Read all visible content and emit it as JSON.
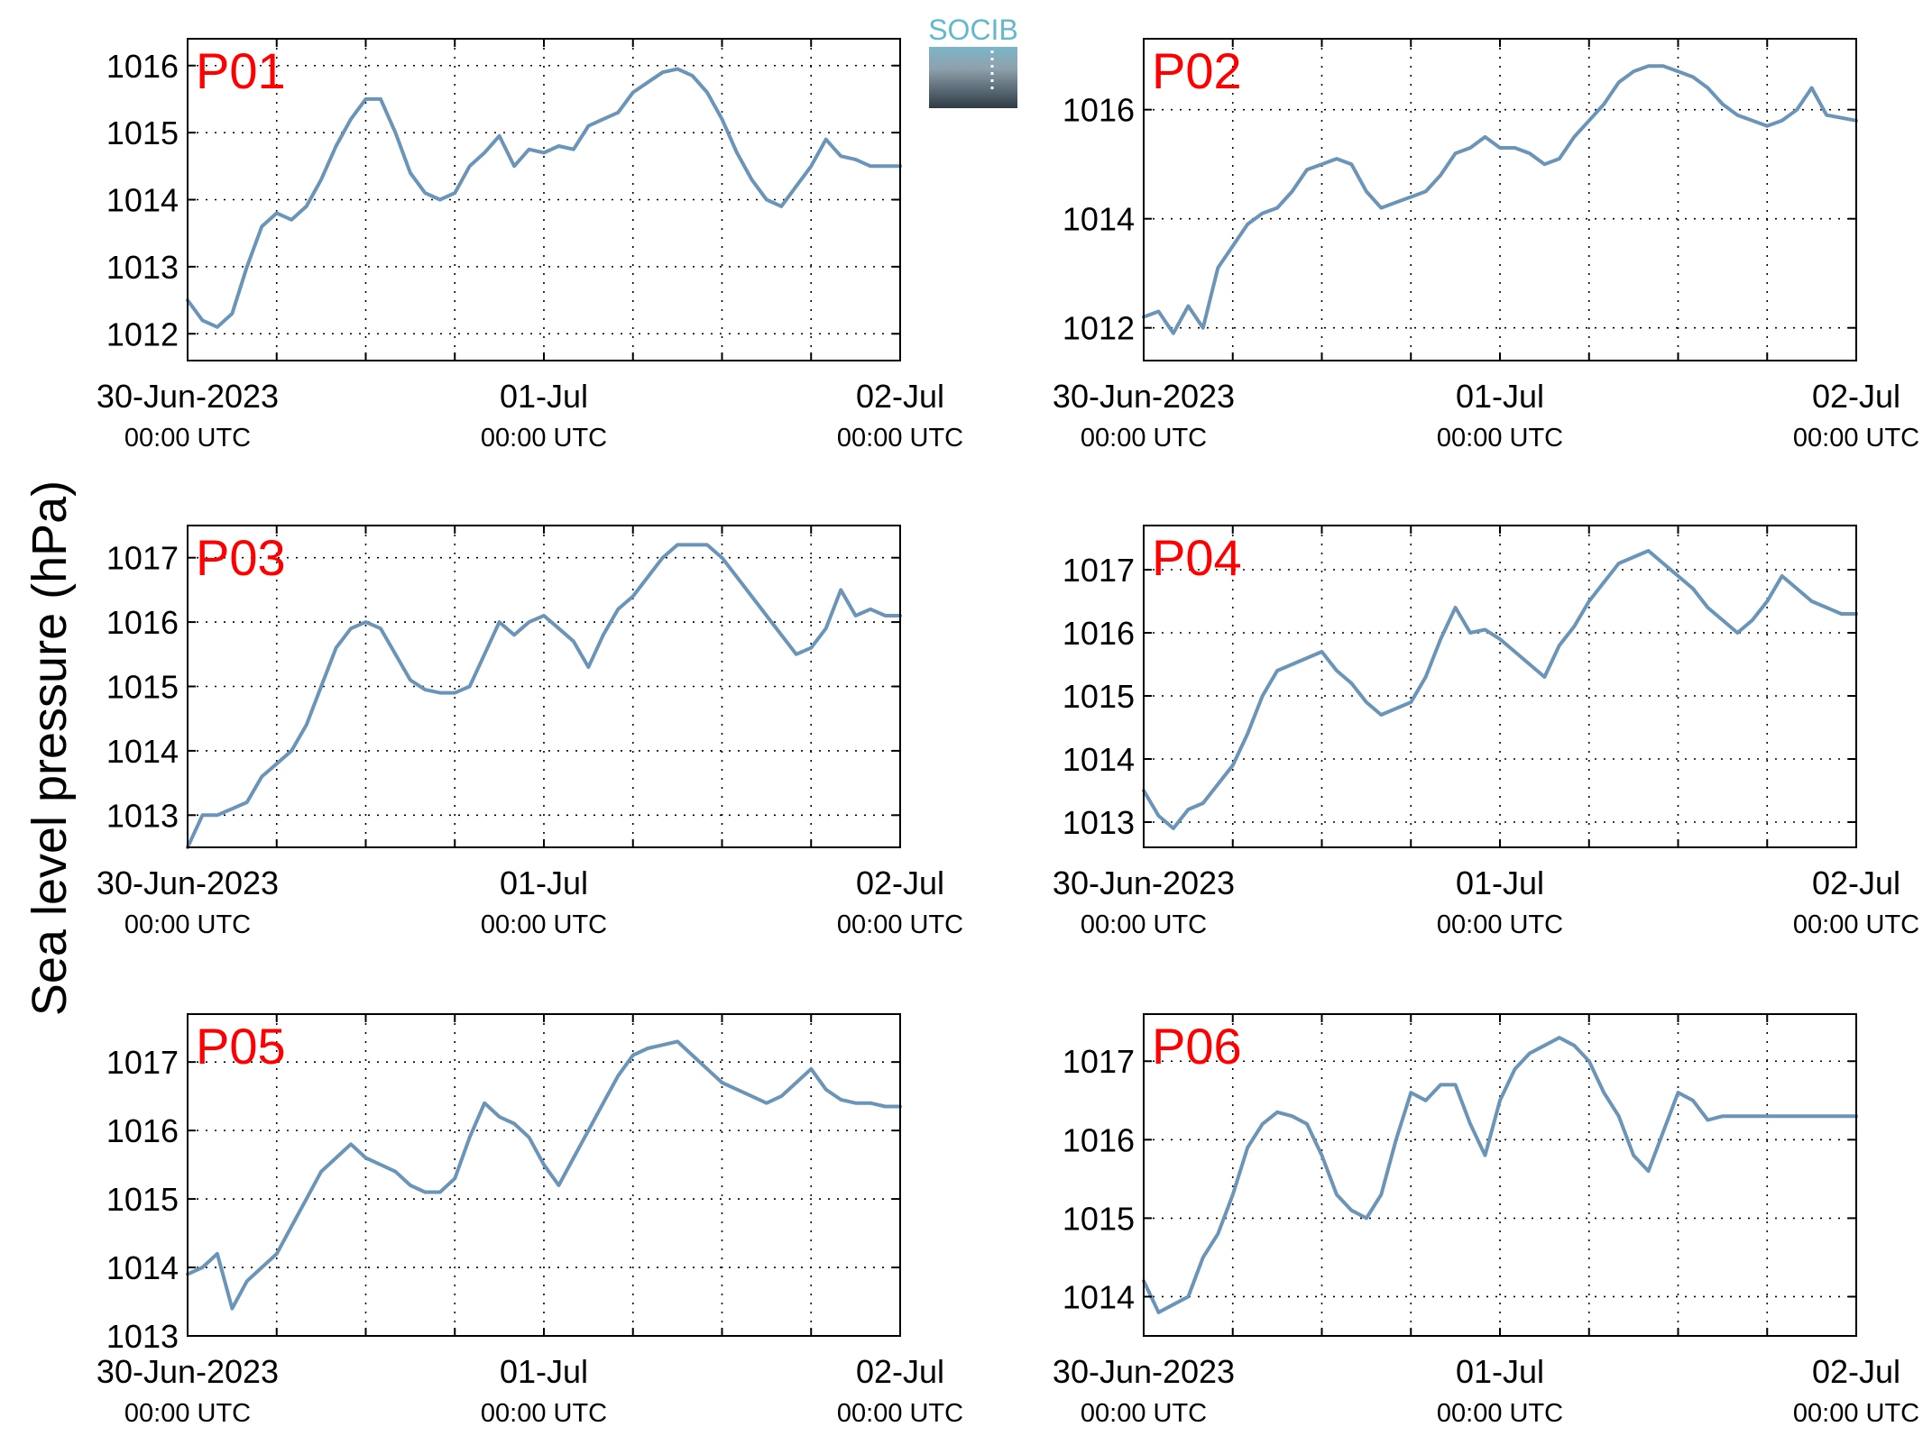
{
  "figure": {
    "ylabel": "Sea level pressure (hPa)",
    "logo_text": "SOCIB",
    "line_color": "#6a95b8",
    "panel_label_color": "#ff0000"
  },
  "chart_data": [
    {
      "type": "line",
      "panel_label": "P01",
      "ylabel": "Sea level pressure (hPa)",
      "xlim": [
        "2023-06-30T00:00Z",
        "2023-07-02T00:00Z"
      ],
      "ylim": [
        1011.6,
        1016.4
      ],
      "yticks": [
        1012,
        1013,
        1014,
        1015,
        1016
      ],
      "xticks": [
        {
          "value": "2023-06-30T00:00Z",
          "label": "30-Jun-2023",
          "sublabel": "00:00 UTC"
        },
        {
          "value": "2023-07-01T00:00Z",
          "label": "01-Jul",
          "sublabel": "00:00 UTC"
        },
        {
          "value": "2023-07-02T00:00Z",
          "label": "02-Jul",
          "sublabel": "00:00 UTC"
        }
      ],
      "grid": true,
      "series": [
        {
          "x_hours": [
            0,
            1,
            2,
            3,
            4,
            5,
            6,
            7,
            8,
            9,
            10,
            11,
            12,
            13,
            14,
            15,
            16,
            17,
            18,
            19,
            20,
            21,
            22,
            23,
            24,
            25,
            26,
            27,
            28,
            29,
            30,
            31,
            32,
            33,
            34,
            35,
            36,
            37,
            38,
            39,
            40,
            41,
            42,
            43,
            44,
            45,
            46,
            47,
            48
          ],
          "values": [
            1012.5,
            1012.2,
            1012.1,
            1012.3,
            1013.0,
            1013.6,
            1013.8,
            1013.7,
            1013.9,
            1014.3,
            1014.8,
            1015.2,
            1015.5,
            1015.5,
            1015.0,
            1014.4,
            1014.1,
            1014.0,
            1014.1,
            1014.5,
            1014.7,
            1014.95,
            1014.5,
            1014.75,
            1014.7,
            1014.8,
            1014.75,
            1015.1,
            1015.2,
            1015.3,
            1015.6,
            1015.75,
            1015.9,
            1015.95,
            1015.85,
            1015.6,
            1015.2,
            1014.7,
            1014.3,
            1014.0,
            1013.9,
            1014.2,
            1014.5,
            1014.9,
            1014.65,
            1014.6,
            1014.5,
            1014.5,
            1014.5
          ]
        }
      ]
    },
    {
      "type": "line",
      "panel_label": "P02",
      "ylabel": "Sea level pressure (hPa)",
      "xlim": [
        "2023-06-30T00:00Z",
        "2023-07-02T00:00Z"
      ],
      "ylim": [
        1011.4,
        1017.3
      ],
      "yticks": [
        1012,
        1014,
        1016
      ],
      "xticks": [
        {
          "value": "2023-06-30T00:00Z",
          "label": "30-Jun-2023",
          "sublabel": "00:00 UTC"
        },
        {
          "value": "2023-07-01T00:00Z",
          "label": "01-Jul",
          "sublabel": "00:00 UTC"
        },
        {
          "value": "2023-07-02T00:00Z",
          "label": "02-Jul",
          "sublabel": "00:00 UTC"
        }
      ],
      "grid": true,
      "series": [
        {
          "x_hours": [
            0,
            1,
            2,
            3,
            4,
            5,
            6,
            7,
            8,
            9,
            10,
            11,
            12,
            13,
            14,
            15,
            16,
            17,
            18,
            19,
            20,
            21,
            22,
            23,
            24,
            25,
            26,
            27,
            28,
            29,
            30,
            31,
            32,
            33,
            34,
            35,
            36,
            37,
            38,
            39,
            40,
            41,
            42,
            43,
            44,
            45,
            46,
            47,
            48
          ],
          "values": [
            1012.2,
            1012.3,
            1011.9,
            1012.4,
            1012.0,
            1013.1,
            1013.5,
            1013.9,
            1014.1,
            1014.2,
            1014.5,
            1014.9,
            1015.0,
            1015.1,
            1015.0,
            1014.5,
            1014.2,
            1014.3,
            1014.4,
            1014.5,
            1014.8,
            1015.2,
            1015.3,
            1015.5,
            1015.3,
            1015.3,
            1015.2,
            1015.0,
            1015.1,
            1015.5,
            1015.8,
            1016.1,
            1016.5,
            1016.7,
            1016.8,
            1016.8,
            1016.7,
            1016.6,
            1016.4,
            1016.1,
            1015.9,
            1015.8,
            1015.7,
            1015.8,
            1016.0,
            1016.4,
            1015.9,
            1015.85,
            1015.8
          ]
        }
      ]
    },
    {
      "type": "line",
      "panel_label": "P03",
      "ylabel": "Sea level pressure (hPa)",
      "xlim": [
        "2023-06-30T00:00Z",
        "2023-07-02T00:00Z"
      ],
      "ylim": [
        1012.5,
        1017.5
      ],
      "yticks": [
        1013,
        1014,
        1015,
        1016,
        1017
      ],
      "xticks": [
        {
          "value": "2023-06-30T00:00Z",
          "label": "30-Jun-2023",
          "sublabel": "00:00 UTC"
        },
        {
          "value": "2023-07-01T00:00Z",
          "label": "01-Jul",
          "sublabel": "00:00 UTC"
        },
        {
          "value": "2023-07-02T00:00Z",
          "label": "02-Jul",
          "sublabel": "00:00 UTC"
        }
      ],
      "grid": true,
      "series": [
        {
          "x_hours": [
            0,
            1,
            2,
            3,
            4,
            5,
            6,
            7,
            8,
            9,
            10,
            11,
            12,
            13,
            14,
            15,
            16,
            17,
            18,
            19,
            20,
            21,
            22,
            23,
            24,
            25,
            26,
            27,
            28,
            29,
            30,
            31,
            32,
            33,
            34,
            35,
            36,
            37,
            38,
            39,
            40,
            41,
            42,
            43,
            44,
            45,
            46,
            47,
            48
          ],
          "values": [
            1012.5,
            1013.0,
            1013.0,
            1013.1,
            1013.2,
            1013.6,
            1013.8,
            1014.0,
            1014.4,
            1015.0,
            1015.6,
            1015.9,
            1016.0,
            1015.9,
            1015.5,
            1015.1,
            1014.95,
            1014.9,
            1014.9,
            1015.0,
            1015.5,
            1016.0,
            1015.8,
            1016.0,
            1016.1,
            1015.9,
            1015.7,
            1015.3,
            1015.8,
            1016.2,
            1016.4,
            1016.7,
            1017.0,
            1017.2,
            1017.2,
            1017.2,
            1017.0,
            1016.7,
            1016.4,
            1016.1,
            1015.8,
            1015.5,
            1015.6,
            1015.9,
            1016.5,
            1016.1,
            1016.2,
            1016.1,
            1016.1
          ]
        }
      ]
    },
    {
      "type": "line",
      "panel_label": "P04",
      "ylabel": "Sea level pressure (hPa)",
      "xlim": [
        "2023-06-30T00:00Z",
        "2023-07-02T00:00Z"
      ],
      "ylim": [
        1012.6,
        1017.7
      ],
      "yticks": [
        1013,
        1014,
        1015,
        1016,
        1017
      ],
      "xticks": [
        {
          "value": "2023-06-30T00:00Z",
          "label": "30-Jun-2023",
          "sublabel": "00:00 UTC"
        },
        {
          "value": "2023-07-01T00:00Z",
          "label": "01-Jul",
          "sublabel": "00:00 UTC"
        },
        {
          "value": "2023-07-02T00:00Z",
          "label": "02-Jul",
          "sublabel": "00:00 UTC"
        }
      ],
      "grid": true,
      "series": [
        {
          "x_hours": [
            0,
            1,
            2,
            3,
            4,
            5,
            6,
            7,
            8,
            9,
            10,
            11,
            12,
            13,
            14,
            15,
            16,
            17,
            18,
            19,
            20,
            21,
            22,
            23,
            24,
            25,
            26,
            27,
            28,
            29,
            30,
            31,
            32,
            33,
            34,
            35,
            36,
            37,
            38,
            39,
            40,
            41,
            42,
            43,
            44,
            45,
            46,
            47,
            48
          ],
          "values": [
            1013.5,
            1013.1,
            1012.9,
            1013.2,
            1013.3,
            1013.6,
            1013.9,
            1014.4,
            1015.0,
            1015.4,
            1015.5,
            1015.6,
            1015.7,
            1015.4,
            1015.2,
            1014.9,
            1014.7,
            1014.8,
            1014.9,
            1015.3,
            1015.9,
            1016.4,
            1016.0,
            1016.05,
            1015.9,
            1015.7,
            1015.5,
            1015.3,
            1015.8,
            1016.1,
            1016.5,
            1016.8,
            1017.1,
            1017.2,
            1017.3,
            1017.1,
            1016.9,
            1016.7,
            1016.4,
            1016.2,
            1016.0,
            1016.2,
            1016.5,
            1016.9,
            1016.7,
            1016.5,
            1016.4,
            1016.3,
            1016.3
          ]
        }
      ]
    },
    {
      "type": "line",
      "panel_label": "P05",
      "ylabel": "Sea level pressure (hPa)",
      "xlim": [
        "2023-06-30T00:00Z",
        "2023-07-02T00:00Z"
      ],
      "ylim": [
        1013.0,
        1017.7
      ],
      "yticks": [
        1013,
        1014,
        1015,
        1016,
        1017
      ],
      "xticks": [
        {
          "value": "2023-06-30T00:00Z",
          "label": "30-Jun-2023",
          "sublabel": "00:00 UTC"
        },
        {
          "value": "2023-07-01T00:00Z",
          "label": "01-Jul",
          "sublabel": "00:00 UTC"
        },
        {
          "value": "2023-07-02T00:00Z",
          "label": "02-Jul",
          "sublabel": "00:00 UTC"
        }
      ],
      "grid": true,
      "series": [
        {
          "x_hours": [
            0,
            1,
            2,
            3,
            4,
            5,
            6,
            7,
            8,
            9,
            10,
            11,
            12,
            13,
            14,
            15,
            16,
            17,
            18,
            19,
            20,
            21,
            22,
            23,
            24,
            25,
            26,
            27,
            28,
            29,
            30,
            31,
            32,
            33,
            34,
            35,
            36,
            37,
            38,
            39,
            40,
            41,
            42,
            43,
            44,
            45,
            46,
            47,
            48
          ],
          "values": [
            1013.9,
            1014.0,
            1014.2,
            1013.4,
            1013.8,
            1014.0,
            1014.2,
            1014.6,
            1015.0,
            1015.4,
            1015.6,
            1015.8,
            1015.6,
            1015.5,
            1015.4,
            1015.2,
            1015.1,
            1015.1,
            1015.3,
            1015.9,
            1016.4,
            1016.2,
            1016.1,
            1015.9,
            1015.5,
            1015.2,
            1015.6,
            1016.0,
            1016.4,
            1016.8,
            1017.1,
            1017.2,
            1017.25,
            1017.3,
            1017.1,
            1016.9,
            1016.7,
            1016.6,
            1016.5,
            1016.4,
            1016.5,
            1016.7,
            1016.9,
            1016.6,
            1016.45,
            1016.4,
            1016.4,
            1016.35,
            1016.35
          ]
        }
      ]
    },
    {
      "type": "line",
      "panel_label": "P06",
      "ylabel": "Sea level pressure (hPa)",
      "xlim": [
        "2023-06-30T00:00Z",
        "2023-07-02T00:00Z"
      ],
      "ylim": [
        1013.5,
        1017.6
      ],
      "yticks": [
        1014,
        1015,
        1016,
        1017
      ],
      "xticks": [
        {
          "value": "2023-06-30T00:00Z",
          "label": "30-Jun-2023",
          "sublabel": "00:00 UTC"
        },
        {
          "value": "2023-07-01T00:00Z",
          "label": "01-Jul",
          "sublabel": "00:00 UTC"
        },
        {
          "value": "2023-07-02T00:00Z",
          "label": "02-Jul",
          "sublabel": "00:00 UTC"
        }
      ],
      "grid": true,
      "series": [
        {
          "x_hours": [
            0,
            1,
            2,
            3,
            4,
            5,
            6,
            7,
            8,
            9,
            10,
            11,
            12,
            13,
            14,
            15,
            16,
            17,
            18,
            19,
            20,
            21,
            22,
            23,
            24,
            25,
            26,
            27,
            28,
            29,
            30,
            31,
            32,
            33,
            34,
            35,
            36,
            37,
            38,
            39,
            40,
            41,
            42,
            43,
            44,
            45,
            46,
            47,
            48
          ],
          "values": [
            1014.2,
            1013.8,
            1013.9,
            1014.0,
            1014.5,
            1014.8,
            1015.3,
            1015.9,
            1016.2,
            1016.35,
            1016.3,
            1016.2,
            1015.8,
            1015.3,
            1015.1,
            1015.0,
            1015.3,
            1016.0,
            1016.6,
            1016.5,
            1016.7,
            1016.7,
            1016.2,
            1015.8,
            1016.5,
            1016.9,
            1017.1,
            1017.2,
            1017.3,
            1017.2,
            1017.0,
            1016.6,
            1016.3,
            1015.8,
            1015.6,
            1016.1,
            1016.6,
            1016.5,
            1016.25,
            1016.3,
            1016.3,
            1016.3,
            1016.3,
            1016.3,
            1016.3,
            1016.3,
            1016.3,
            1016.3,
            1016.3
          ]
        }
      ]
    }
  ]
}
